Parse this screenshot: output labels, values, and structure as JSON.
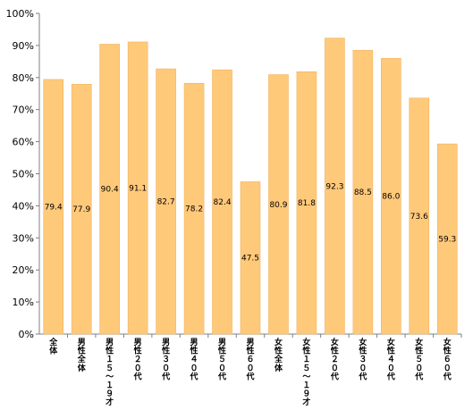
{
  "chart_data": {
    "type": "bar",
    "title": "",
    "xlabel": "",
    "ylabel": "",
    "categories": [
      "全体",
      "男性全体",
      "男性１５～１９才",
      "男性２０代",
      "男性３０代",
      "男性４０代",
      "男性５０代",
      "男性６０代",
      "女性全体",
      "女性１５～１９才",
      "女性２０代",
      "女性３０代",
      "女性４０代",
      "女性５０代",
      "女性６０代"
    ],
    "values": [
      79.4,
      77.9,
      90.4,
      91.1,
      82.7,
      78.2,
      82.4,
      47.5,
      80.9,
      81.8,
      92.3,
      88.5,
      86.0,
      73.6,
      59.3
    ],
    "value_labels": [
      "79.4",
      "77.9",
      "90.4",
      "91.1",
      "82.7",
      "78.2",
      "82.4",
      "47.5",
      "80.9",
      "81.8",
      "92.3",
      "88.5",
      "86.0",
      "73.6",
      "59.3"
    ],
    "ylim": [
      0,
      100
    ],
    "y_ticks": [
      0,
      10,
      20,
      30,
      40,
      50,
      60,
      70,
      80,
      90,
      100
    ],
    "y_tick_labels": [
      "0%",
      "10%",
      "20%",
      "30%",
      "40%",
      "50%",
      "60%",
      "70%",
      "80%",
      "90%",
      "100%"
    ],
    "grid": false,
    "legend": "none",
    "colors": {
      "bar": "#ffc97a",
      "bar_edge": "#f2b35f",
      "axis": "#808080",
      "text": "#000000"
    }
  }
}
